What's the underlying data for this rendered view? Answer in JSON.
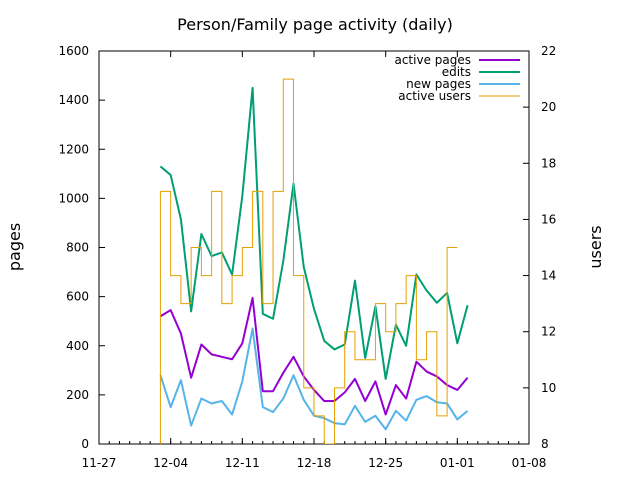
{
  "chart_data": {
    "type": "line",
    "title": "Person/Family page activity (daily)",
    "ylabel": "pages",
    "y2label": "users",
    "ylim": [
      0,
      1600
    ],
    "y2lim": [
      8,
      22
    ],
    "yticks": [
      0,
      200,
      400,
      600,
      800,
      1000,
      1200,
      1400,
      1600
    ],
    "y2ticks": [
      8,
      10,
      12,
      14,
      16,
      18,
      20,
      22
    ],
    "xlim": [
      "2023-11-27",
      "2024-01-08"
    ],
    "xticks": [
      {
        "date": "2023-11-27",
        "label": "11-27"
      },
      {
        "date": "2023-12-04",
        "label": "12-04"
      },
      {
        "date": "2023-12-11",
        "label": "12-11"
      },
      {
        "date": "2023-12-18",
        "label": "12-18"
      },
      {
        "date": "2023-12-25",
        "label": "12-25"
      },
      {
        "date": "2024-01-01",
        "label": "01-01"
      },
      {
        "date": "2024-01-08",
        "label": "01-08"
      }
    ],
    "legend_position": "top-right",
    "x": [
      "2023-12-03",
      "2023-12-04",
      "2023-12-05",
      "2023-12-06",
      "2023-12-07",
      "2023-12-08",
      "2023-12-09",
      "2023-12-10",
      "2023-12-11",
      "2023-12-12",
      "2023-12-13",
      "2023-12-14",
      "2023-12-15",
      "2023-12-16",
      "2023-12-17",
      "2023-12-18",
      "2023-12-19",
      "2023-12-20",
      "2023-12-21",
      "2023-12-22",
      "2023-12-23",
      "2023-12-24",
      "2023-12-25",
      "2023-12-26",
      "2023-12-27",
      "2023-12-28",
      "2023-12-29",
      "2023-12-30",
      "2023-12-31",
      "2024-01-01",
      "2024-01-02"
    ],
    "series": [
      {
        "name": "active pages",
        "axis": "y",
        "color": "#9400d3",
        "style": "line",
        "values": [
          520,
          545,
          450,
          270,
          405,
          365,
          355,
          345,
          410,
          595,
          215,
          215,
          290,
          355,
          275,
          220,
          175,
          175,
          210,
          265,
          175,
          255,
          120,
          240,
          185,
          335,
          295,
          275,
          240,
          220,
          270
        ]
      },
      {
        "name": "edits",
        "axis": "y",
        "color": "#009e73",
        "style": "line",
        "values": [
          1130,
          1095,
          915,
          540,
          855,
          765,
          780,
          690,
          1010,
          1450,
          530,
          510,
          745,
          1060,
          720,
          550,
          420,
          385,
          405,
          665,
          350,
          560,
          265,
          485,
          400,
          690,
          625,
          575,
          615,
          410,
          565
        ]
      },
      {
        "name": "new pages",
        "axis": "y",
        "color": "#56b4e9",
        "style": "line",
        "values": [
          280,
          150,
          260,
          75,
          185,
          165,
          175,
          120,
          255,
          470,
          150,
          130,
          185,
          280,
          180,
          115,
          105,
          85,
          80,
          155,
          90,
          115,
          60,
          135,
          95,
          180,
          195,
          170,
          165,
          100,
          135
        ]
      },
      {
        "name": "active users",
        "axis": "y2",
        "color": "#e69f00",
        "style": "steps",
        "values": [
          17,
          14,
          13,
          15,
          14,
          17,
          13,
          14,
          15,
          17,
          13,
          17,
          21,
          14,
          10,
          9,
          8,
          10,
          12,
          11,
          11,
          13,
          12,
          13,
          14,
          11,
          12,
          9,
          15,
          null,
          null
        ]
      }
    ]
  }
}
